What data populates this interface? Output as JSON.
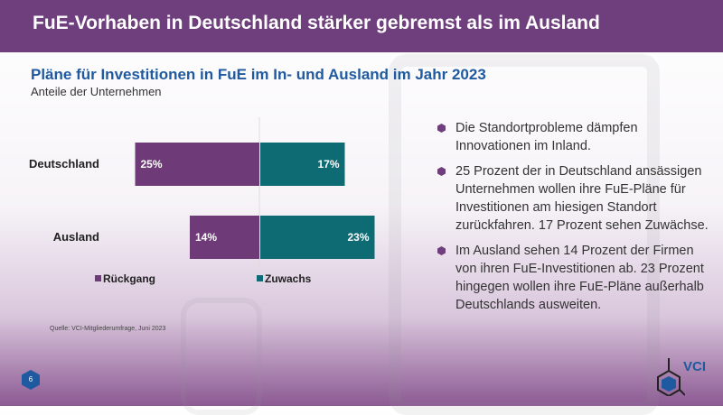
{
  "header": {
    "title": "FuE-Vorhaben in Deutschland stärker gebremst als im Ausland"
  },
  "chart_data": {
    "type": "bar",
    "orientation": "horizontal-diverging",
    "title": "Pläne für Investitionen in FuE im In- und Ausland im Jahr 2023",
    "subtitle": "Anteile der Unternehmen",
    "categories": [
      "Deutschland",
      "Ausland"
    ],
    "series": [
      {
        "name": "Rückgang",
        "values": [
          25,
          14
        ],
        "color": "#6e3b78",
        "labels": [
          "25%",
          "14%"
        ]
      },
      {
        "name": "Zuwachs",
        "values": [
          17,
          23
        ],
        "color": "#0e6b74",
        "labels": [
          "17%",
          "23%"
        ]
      }
    ],
    "legend": "bottom",
    "grid": false,
    "source": "Quelle: VCI-Mitgliederumfrage, Juni 2023"
  },
  "bullets": [
    "Die Standortprobleme dämpfen Innovationen im Inland.",
    "25 Prozent der in Deutschland ansässigen Unternehmen wollen ihre FuE-Pläne für Investitionen am hiesigen Standort zurückfahren. 17 Prozent sehen Zuwächse.",
    "Im Ausland sehen 14 Prozent der Firmen von ihren FuE-Investitionen ab. 23 Prozent hingegen wollen ihre FuE-Pläne außerhalb Deutschlands ausweiten."
  ],
  "footer": {
    "page_number": "6",
    "logo": "VCI"
  },
  "colors": {
    "header": "#6e3f7c",
    "title": "#1f5aa0"
  }
}
